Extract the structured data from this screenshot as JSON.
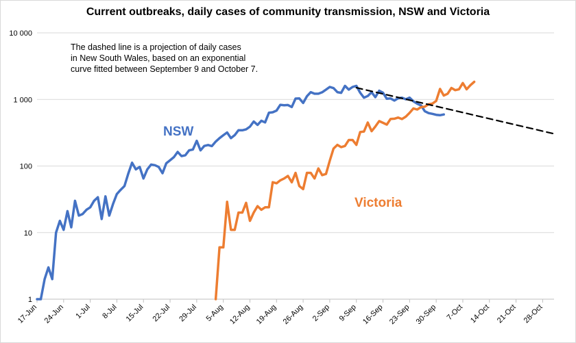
{
  "chart_data": {
    "type": "line",
    "title": "Current outbreaks, daily cases of community transmission, NSW and Victoria",
    "annotation": [
      "The dashed line is a projection of daily cases",
      "in New South Wales, based on an exponential",
      "curve fitted between September 9 and October 7."
    ],
    "yscale": "log",
    "ylim": [
      1,
      10000
    ],
    "yticks": [
      1,
      10,
      100,
      1000,
      10000
    ],
    "ytick_labels": [
      "1",
      "10",
      "100",
      "1 000",
      "10 000"
    ],
    "xlim_day_index": [
      0,
      136
    ],
    "x_start_date": "17-Jun",
    "xtick_labels": [
      "17-Jun",
      "24-Jun",
      "1-Jul",
      "8-Jul",
      "15-Jul",
      "22-Jul",
      "29-Jul",
      "5-Aug",
      "12-Aug",
      "19-Aug",
      "26-Aug",
      "2-Sep",
      "9-Sep",
      "16-Sep",
      "23-Sep",
      "30-Sep",
      "7-Oct",
      "14-Oct",
      "21-Oct",
      "28-Oct"
    ],
    "series": [
      {
        "name": "NSW",
        "label": "NSW",
        "color": "#4472C4",
        "start_day_index": 0,
        "values": [
          1,
          1,
          2,
          3,
          2,
          10,
          15,
          11,
          21,
          12,
          30,
          18,
          19,
          22,
          24,
          30,
          34,
          16,
          35,
          18,
          27,
          38,
          44,
          50,
          77,
          112,
          89,
          97,
          65,
          89,
          105,
          103,
          97,
          78,
          110,
          122,
          136,
          163,
          141,
          145,
          172,
          177,
          239,
          172,
          200,
          207,
          199,
          233,
          262,
          290,
          319,
          262,
          291,
          345,
          344,
          356,
          390,
          466,
          415,
          478,
          452,
          633,
          642,
          681,
          830,
          818,
          825,
          769,
          1029,
          1035,
          885,
          1116,
          1288,
          1218,
          1220,
          1281,
          1405,
          1542,
          1480,
          1288,
          1257,
          1599,
          1405,
          1542,
          1599,
          1259,
          1062,
          1127,
          1284,
          1083,
          1351,
          1262,
          1022,
          1035,
          961,
          1043,
          1063,
          1007,
          1066,
          936,
          864,
          813,
          667,
          623,
          608,
          587,
          580,
          594
        ]
      },
      {
        "name": "Victoria",
        "label": "Victoria",
        "color": "#ED7D31",
        "start_day_index": 47,
        "values": [
          1,
          6,
          6,
          29,
          11,
          11,
          20,
          20,
          28,
          15,
          20,
          25,
          22,
          24,
          24,
          57,
          55,
          61,
          65,
          71,
          57,
          79,
          50,
          45,
          79,
          79,
          65,
          92,
          73,
          76,
          120,
          183,
          208,
          192,
          200,
          246,
          246,
          208,
          324,
          330,
          450,
          334,
          392,
          473,
          445,
          419,
          510,
          514,
          535,
          507,
          551,
          628,
          733,
          705,
          766,
          779,
          847,
          867,
          950,
          1438,
          1143,
          1220,
          1488,
          1377,
          1420,
          1763,
          1420,
          1638,
          1838
        ]
      },
      {
        "name": "NSW projection",
        "style": "dashed",
        "color": "#000000",
        "x_day_index": [
          84,
          136
        ],
        "values": [
          1500,
          305
        ]
      }
    ]
  }
}
